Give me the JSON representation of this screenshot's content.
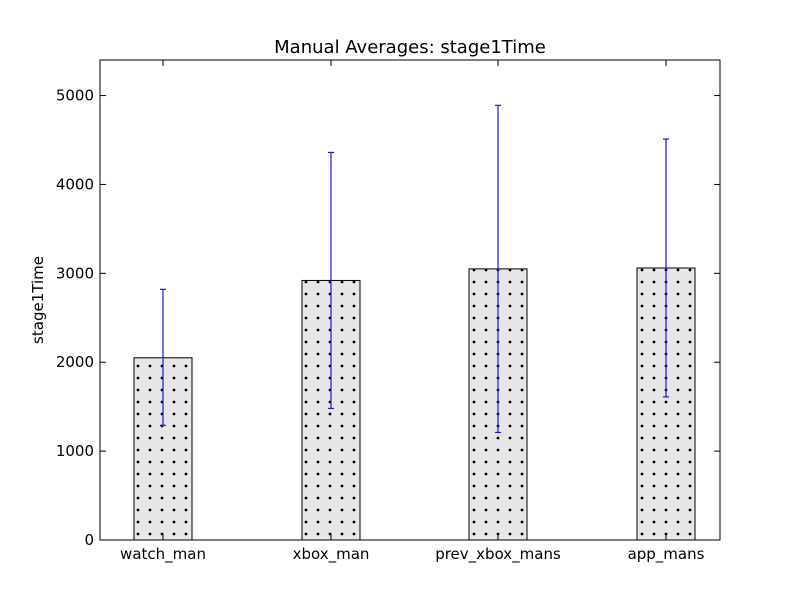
{
  "chart_data": {
    "type": "bar",
    "title": "Manual Averages: stage1Time",
    "xlabel": "",
    "ylabel": "stage1Time",
    "ylim": [
      0,
      5400
    ],
    "yticks": [
      0,
      1000,
      2000,
      3000,
      4000,
      5000
    ],
    "grid": false,
    "legend": "none",
    "categories": [
      "watch_man",
      "xbox_man",
      "prev_xbox_mans",
      "app_mans"
    ],
    "values": [
      2050,
      2920,
      3050,
      3060
    ],
    "error_low": [
      1290,
      1480,
      1210,
      1610
    ],
    "error_high": [
      2820,
      4360,
      4890,
      4510
    ],
    "colors": {
      "bar_fill": "#e6e6e6",
      "bar_edge": "#000000",
      "dot": "#000000",
      "error_bar": "#1a1acc"
    }
  }
}
